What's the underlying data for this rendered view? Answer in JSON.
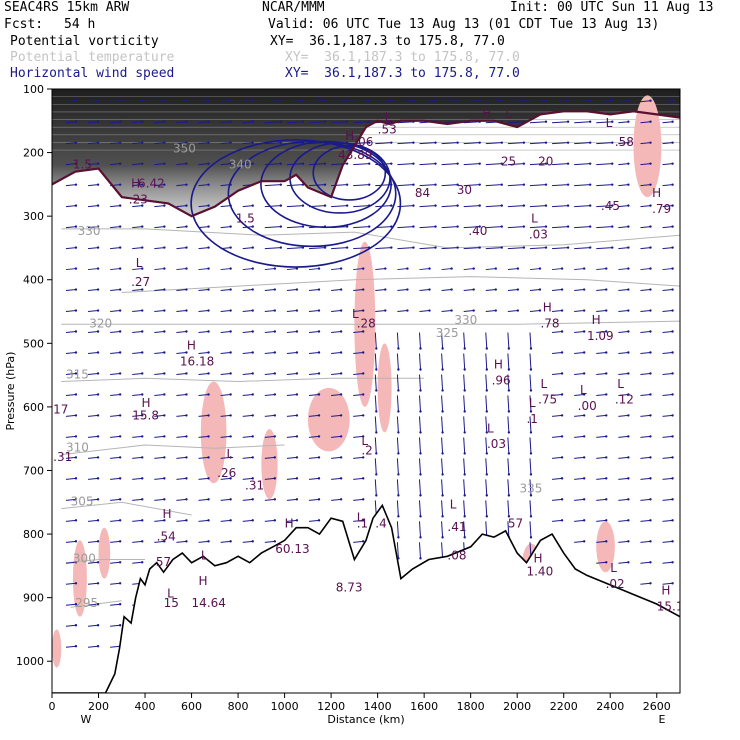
{
  "header": {
    "title": "SEAC4RS 15km ARW",
    "org": "NCAR/MMM",
    "init": "Init: 00 UTC Sun 11 Aug 13",
    "fcst_label": "Fcst:",
    "fcst_value": "54 h",
    "valid": "Valid: 06 UTC Tue 13 Aug 13 (01 CDT Tue 13 Aug 13)",
    "fields": [
      {
        "name": "Potential vorticity",
        "xy": "XY=  36.1,187.3 to 175.8, 77.0",
        "color": "#000000"
      },
      {
        "name": "Potential temperature",
        "xy": "XY=  36.1,187.3 to 175.8, 77.0",
        "color": "#c4c4c4"
      },
      {
        "name": "Horizontal wind speed",
        "xy": "XY=  36.1,187.3 to 175.8, 77.0",
        "color": "#1a1a8c"
      }
    ]
  },
  "chart_data": {
    "type": "cross-section",
    "xlabel": "Distance (km)",
    "ylabel": "Pressure (hPa)",
    "xlim": [
      0,
      2700
    ],
    "ylim": [
      1050,
      100
    ],
    "x_ticks": [
      0,
      200,
      400,
      600,
      800,
      1000,
      1200,
      1400,
      1600,
      1800,
      2000,
      2200,
      2400,
      2600
    ],
    "y_ticks": [
      100,
      200,
      300,
      400,
      500,
      600,
      700,
      800,
      900,
      1000
    ],
    "x_end_labels": {
      "left": "W",
      "right": "E"
    },
    "terrain": [
      [
        0,
        1050
      ],
      [
        230,
        1050
      ],
      [
        270,
        1020
      ],
      [
        290,
        980
      ],
      [
        310,
        930
      ],
      [
        340,
        940
      ],
      [
        360,
        900
      ],
      [
        380,
        870
      ],
      [
        400,
        880
      ],
      [
        420,
        855
      ],
      [
        450,
        845
      ],
      [
        480,
        860
      ],
      [
        520,
        840
      ],
      [
        560,
        830
      ],
      [
        600,
        845
      ],
      [
        650,
        835
      ],
      [
        700,
        850
      ],
      [
        750,
        845
      ],
      [
        800,
        835
      ],
      [
        850,
        845
      ],
      [
        900,
        830
      ],
      [
        950,
        820
      ],
      [
        1000,
        810
      ],
      [
        1050,
        790
      ],
      [
        1100,
        790
      ],
      [
        1150,
        800
      ],
      [
        1200,
        775
      ],
      [
        1250,
        780
      ],
      [
        1300,
        840
      ],
      [
        1350,
        810
      ],
      [
        1380,
        775
      ],
      [
        1420,
        755
      ],
      [
        1460,
        790
      ],
      [
        1500,
        870
      ],
      [
        1550,
        855
      ],
      [
        1620,
        840
      ],
      [
        1700,
        835
      ],
      [
        1800,
        820
      ],
      [
        1850,
        800
      ],
      [
        1900,
        805
      ],
      [
        1950,
        795
      ],
      [
        2000,
        830
      ],
      [
        2040,
        845
      ],
      [
        2100,
        810
      ],
      [
        2150,
        800
      ],
      [
        2200,
        830
      ],
      [
        2250,
        855
      ],
      [
        2300,
        865
      ],
      [
        2400,
        880
      ],
      [
        2500,
        895
      ],
      [
        2600,
        910
      ],
      [
        2700,
        930
      ]
    ],
    "theta_isolines": [
      {
        "label": "295",
        "pts": [
          [
            80,
            915
          ],
          [
            300,
            905
          ]
        ]
      },
      {
        "label": "300",
        "pts": [
          [
            60,
            845
          ],
          [
            200,
            840
          ],
          [
            400,
            840
          ]
        ]
      },
      {
        "label": "305",
        "pts": [
          [
            40,
            760
          ],
          [
            300,
            750
          ],
          [
            600,
            770
          ]
        ]
      },
      {
        "label": "310",
        "pts": [
          [
            40,
            675
          ],
          [
            400,
            660
          ],
          [
            700,
            665
          ],
          [
            1000,
            660
          ]
        ]
      },
      {
        "label": "315",
        "pts": [
          [
            40,
            560
          ],
          [
            400,
            555
          ],
          [
            800,
            560
          ],
          [
            1200,
            555
          ],
          [
            1600,
            555
          ]
        ]
      },
      {
        "label": "320",
        "pts": [
          [
            40,
            470
          ],
          [
            400,
            470
          ],
          [
            900,
            470
          ],
          [
            1400,
            470
          ],
          [
            2000,
            470
          ],
          [
            2700,
            465
          ]
        ]
      },
      {
        "label": "325",
        "pts": [
          [
            300,
            420
          ],
          [
            800,
            410
          ],
          [
            1300,
            400
          ],
          [
            1800,
            395
          ],
          [
            2300,
            400
          ],
          [
            2700,
            410
          ]
        ]
      },
      {
        "label": "330",
        "pts": [
          [
            40,
            320
          ],
          [
            400,
            320
          ],
          [
            900,
            330
          ],
          [
            1300,
            325
          ],
          [
            1700,
            350
          ],
          [
            2200,
            345
          ],
          [
            2700,
            330
          ]
        ]
      }
    ],
    "dynamic_trop": [
      [
        0,
        250
      ],
      [
        100,
        230
      ],
      [
        200,
        225
      ],
      [
        300,
        270
      ],
      [
        400,
        275
      ],
      [
        500,
        280
      ],
      [
        600,
        300
      ],
      [
        700,
        285
      ],
      [
        800,
        260
      ],
      [
        900,
        245
      ],
      [
        1000,
        245
      ],
      [
        1050,
        235
      ],
      [
        1100,
        255
      ],
      [
        1200,
        270
      ],
      [
        1250,
        220
      ],
      [
        1300,
        190
      ],
      [
        1350,
        160
      ],
      [
        1400,
        150
      ],
      [
        1450,
        155
      ],
      [
        1500,
        150
      ],
      [
        1600,
        150
      ],
      [
        1700,
        155
      ],
      [
        1800,
        150
      ],
      [
        1900,
        150
      ],
      [
        2000,
        160
      ],
      [
        2100,
        140
      ],
      [
        2200,
        135
      ],
      [
        2300,
        135
      ],
      [
        2400,
        140
      ],
      [
        2500,
        135
      ],
      [
        2600,
        140
      ],
      [
        2700,
        145
      ]
    ],
    "pv_high_region_top": [
      [
        0,
        100
      ],
      [
        2700,
        100
      ]
    ],
    "wind_jet_contours": [
      {
        "cx": 1650,
        "cy": 280,
        "rx": 900,
        "ry": 200
      },
      {
        "cx": 1720,
        "cy": 265,
        "rx": 720,
        "ry": 165
      },
      {
        "cx": 1780,
        "cy": 250,
        "rx": 560,
        "ry": 135
      },
      {
        "cx": 1840,
        "cy": 240,
        "rx": 430,
        "ry": 110
      },
      {
        "cx": 1880,
        "cy": 232,
        "rx": 310,
        "ry": 85
      }
    ],
    "pink_blobs": [
      [
        0,
        980,
        40,
        60
      ],
      [
        90,
        870,
        60,
        120
      ],
      [
        200,
        830,
        50,
        80
      ],
      [
        640,
        640,
        110,
        160
      ],
      [
        900,
        690,
        70,
        110
      ],
      [
        1100,
        620,
        180,
        100
      ],
      [
        1300,
        470,
        90,
        260
      ],
      [
        1400,
        570,
        60,
        140
      ],
      [
        2020,
        850,
        80,
        70
      ],
      [
        2340,
        820,
        80,
        80
      ],
      [
        2500,
        190,
        120,
        160
      ],
      [
        2750,
        160,
        60,
        80
      ]
    ],
    "labels": [
      {
        "text": "H",
        "x": 385,
        "y": 600
      },
      {
        "text": "15.8",
        "x": 345,
        "y": 620
      },
      {
        "text": "17",
        "x": 5,
        "y": 610
      },
      {
        "text": ".31",
        "x": 5,
        "y": 685
      },
      {
        "text": ".54",
        "x": 450,
        "y": 810
      },
      {
        "text": "H",
        "x": 475,
        "y": 775
      },
      {
        "text": ".57",
        "x": 430,
        "y": 850
      },
      {
        "text": "L",
        "x": 495,
        "y": 900
      },
      {
        "text": "15",
        "x": 480,
        "y": 915
      },
      {
        "text": "14.64",
        "x": 600,
        "y": 915
      },
      {
        "text": "H",
        "x": 630,
        "y": 880
      },
      {
        "text": "L",
        "x": 640,
        "y": 840
      },
      {
        "text": ".26",
        "x": 710,
        "y": 710
      },
      {
        "text": "L",
        "x": 750,
        "y": 680
      },
      {
        "text": ".31",
        "x": 830,
        "y": 730
      },
      {
        "text": "H",
        "x": 1000,
        "y": 790
      },
      {
        "text": "60.13",
        "x": 960,
        "y": 830
      },
      {
        "text": "8.73",
        "x": 1220,
        "y": 890
      },
      {
        "text": "L",
        "x": 1310,
        "y": 780
      },
      {
        "text": ".1",
        "x": 1310,
        "y": 790
      },
      {
        "text": ".4",
        "x": 1390,
        "y": 790
      },
      {
        "text": "L",
        "x": 1330,
        "y": 660
      },
      {
        "text": ".2",
        "x": 1330,
        "y": 675
      },
      {
        "text": "L",
        "x": 1290,
        "y": 460
      },
      {
        "text": ".28",
        "x": 1310,
        "y": 475
      },
      {
        "text": "L",
        "x": 1710,
        "y": 760
      },
      {
        "text": ".41",
        "x": 1700,
        "y": 795
      },
      {
        "text": ".08",
        "x": 1700,
        "y": 840
      },
      {
        "text": "57",
        "x": 1960,
        "y": 790
      },
      {
        "text": "H",
        "x": 2070,
        "y": 845
      },
      {
        "text": "1.40",
        "x": 2040,
        "y": 865
      },
      {
        "text": "L",
        "x": 2400,
        "y": 860
      },
      {
        "text": ".02",
        "x": 2380,
        "y": 885
      },
      {
        "text": "H",
        "x": 2620,
        "y": 895
      },
      {
        "text": "15.1",
        "x": 2600,
        "y": 920
      },
      {
        "text": "L",
        "x": 1870,
        "y": 640
      },
      {
        "text": ".03",
        "x": 1870,
        "y": 665
      },
      {
        "text": "L",
        "x": 2050,
        "y": 600
      },
      {
        "text": ".1",
        "x": 2040,
        "y": 625
      },
      {
        "text": "L",
        "x": 2100,
        "y": 570
      },
      {
        "text": ".75",
        "x": 2090,
        "y": 595
      },
      {
        "text": "L",
        "x": 2270,
        "y": 580
      },
      {
        "text": ".00",
        "x": 2260,
        "y": 605
      },
      {
        "text": "L",
        "x": 2430,
        "y": 570
      },
      {
        "text": ".12",
        "x": 2420,
        "y": 595
      },
      {
        "text": "H",
        "x": 1900,
        "y": 540
      },
      {
        "text": ".96",
        "x": 1890,
        "y": 565
      },
      {
        "text": "H",
        "x": 2110,
        "y": 450
      },
      {
        "text": ".78",
        "x": 2100,
        "y": 475
      },
      {
        "text": "H",
        "x": 2320,
        "y": 470
      },
      {
        "text": "1.09",
        "x": 2300,
        "y": 495
      },
      {
        "text": "H",
        "x": 580,
        "y": 510
      },
      {
        "text": "16.18",
        "x": 550,
        "y": 535
      },
      {
        "text": "L",
        "x": 360,
        "y": 380
      },
      {
        "text": ".27",
        "x": 340,
        "y": 410
      },
      {
        "text": "L",
        "x": 2060,
        "y": 310
      },
      {
        "text": ".03",
        "x": 2050,
        "y": 335
      },
      {
        "text": ".45",
        "x": 2360,
        "y": 290
      },
      {
        "text": "H",
        "x": 2580,
        "y": 270
      },
      {
        "text": ".79",
        "x": 2580,
        "y": 295
      },
      {
        "text": ".58",
        "x": 2420,
        "y": 190
      },
      {
        "text": "L",
        "x": 2380,
        "y": 160
      },
      {
        "text": "20",
        "x": 2090,
        "y": 220
      },
      {
        "text": "25",
        "x": 1930,
        "y": 220
      },
      {
        "text": "30",
        "x": 1740,
        "y": 265
      },
      {
        "text": "84",
        "x": 1560,
        "y": 270
      },
      {
        "text": "H",
        "x": 1260,
        "y": 180
      },
      {
        "text": "43.89",
        "x": 1230,
        "y": 210
      },
      {
        "text": ".06",
        "x": 1300,
        "y": 190
      },
      {
        "text": ".53",
        "x": 1400,
        "y": 170
      },
      {
        "text": "L",
        "x": 1430,
        "y": 150
      },
      {
        "text": ".40",
        "x": 1790,
        "y": 330
      },
      {
        "text": "1.5",
        "x": 90,
        "y": 225
      },
      {
        "text": "H",
        "x": 340,
        "y": 255
      },
      {
        "text": "6.42",
        "x": 370,
        "y": 255
      },
      {
        "text": ".23",
        "x": 330,
        "y": 280
      },
      {
        "text": "350",
        "x": 520,
        "y": 200
      },
      {
        "text": "340",
        "x": 760,
        "y": 225
      },
      {
        "text": "1.5",
        "x": 790,
        "y": 310
      },
      {
        "text": "330",
        "x": 110,
        "y": 330
      },
      {
        "text": "320",
        "x": 160,
        "y": 475
      },
      {
        "text": "315",
        "x": 60,
        "y": 555
      },
      {
        "text": "310",
        "x": 60,
        "y": 670
      },
      {
        "text": "305",
        "x": 80,
        "y": 755
      },
      {
        "text": "300",
        "x": 90,
        "y": 845
      },
      {
        "text": "295",
        "x": 100,
        "y": 915
      },
      {
        "text": "330",
        "x": 1730,
        "y": 470
      },
      {
        "text": "325",
        "x": 1650,
        "y": 490
      },
      {
        "text": "335",
        "x": 2010,
        "y": 735
      },
      {
        "text": "H",
        "x": 1850,
        "y": 145
      },
      {
        "text": "L",
        "x": 1950,
        "y": 145
      }
    ],
    "colors": {
      "pv_dark": "#2b2b2b",
      "theta": "#b5b5b5",
      "trop": "#5a1030",
      "jet": "#1a1a8c",
      "pink": "#f5b8b8",
      "vectors": "#1a1a8c",
      "label_purple": "#5a1050"
    }
  }
}
